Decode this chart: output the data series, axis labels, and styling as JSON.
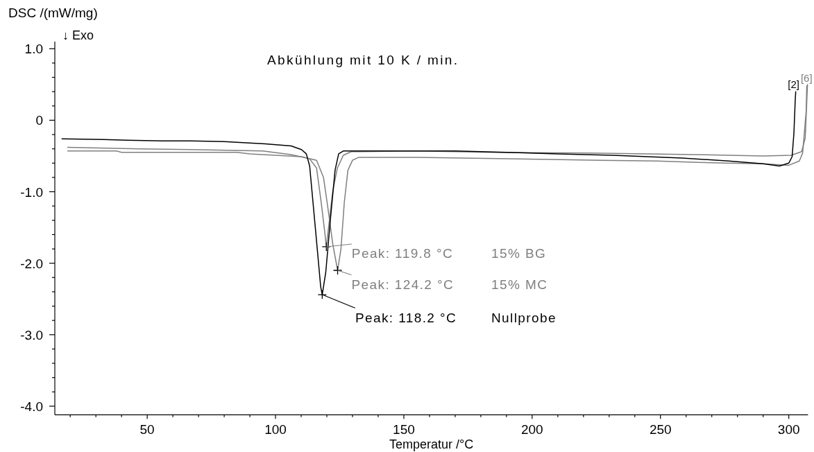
{
  "chart_data": {
    "type": "line",
    "title": "Abkühlung mit 10 K / min.",
    "xlabel": "Temperatur /°C",
    "ylabel": "DSC /(mW/mg)",
    "annotations": [
      "↓ Exo",
      {
        "text": "Peak: 119.8 °C",
        "x": 119.8,
        "y": -1.77
      },
      {
        "text": "Peak: 124.2 °C",
        "x": 124.2,
        "y": -2.1
      },
      {
        "text": "Peak: 118.2 °C",
        "x": 118.2,
        "y": -2.44
      },
      "15% BG",
      "15% MC",
      "Nullprobe",
      {
        "text": "[2]",
        "x": 302.7,
        "y": 0.4
      },
      {
        "text": "[6]",
        "x": 307.2,
        "y": 0.5
      }
    ],
    "series": [
      {
        "color": "#7f7f7f",
        "x": [
          19,
          47,
          67,
          95,
          106,
          111,
          113.3,
          116,
          117.8,
          119.2,
          119.8,
          120.5,
          122.3,
          124.1,
          126.4,
          129.5,
          133,
          155,
          185,
          222.5,
          263,
          290,
          300.9,
          305,
          306.4,
          307.3
        ],
        "values": [
          -0.38,
          -0.4,
          -0.41,
          -0.43,
          -0.48,
          -0.52,
          -0.54,
          -0.67,
          -1.15,
          -1.57,
          -1.77,
          -1.55,
          -0.99,
          -0.67,
          -0.49,
          -0.44,
          -0.44,
          -0.43,
          -0.45,
          -0.46,
          -0.48,
          -0.5,
          -0.49,
          -0.44,
          -0.25,
          0.5
        ]
      },
      {
        "color": "#7f7f7f",
        "x": [
          19,
          38,
          40,
          85,
          90,
          100,
          110,
          116,
          118.7,
          120.5,
          122.3,
          124.2,
          125.5,
          126.8,
          128.2,
          130,
          132.3,
          155,
          190.8,
          226.9,
          248.6,
          264.8,
          275.6,
          290,
          300,
          304.1,
          305.4,
          306.8,
          307
        ],
        "values": [
          -0.43,
          -0.43,
          -0.45,
          -0.45,
          -0.47,
          -0.49,
          -0.51,
          -0.56,
          -0.8,
          -1.25,
          -1.73,
          -2.1,
          -1.8,
          -1.15,
          -0.7,
          -0.56,
          -0.52,
          -0.52,
          -0.54,
          -0.56,
          -0.57,
          -0.59,
          -0.6,
          -0.61,
          -0.63,
          -0.57,
          -0.46,
          0.14,
          0.48
        ]
      },
      {
        "color": "#000000",
        "x": [
          16.8,
          33,
          42,
          56,
          67,
          80,
          96,
          106.1,
          110.1,
          112,
          113.3,
          115.5,
          117.6,
          118.2,
          119.6,
          121.4,
          123.2,
          124.6,
          126.4,
          140,
          155,
          170,
          190,
          210,
          231.4,
          258.5,
          276.6,
          290.1,
          296.4,
          300,
          301.3,
          302,
          302.5,
          302.7
        ],
        "values": [
          -0.26,
          -0.27,
          -0.28,
          -0.29,
          -0.29,
          -0.3,
          -0.33,
          -0.36,
          -0.41,
          -0.47,
          -0.64,
          -1.5,
          -2.33,
          -2.44,
          -2.12,
          -1.38,
          -0.7,
          -0.47,
          -0.43,
          -0.43,
          -0.43,
          -0.43,
          -0.45,
          -0.47,
          -0.49,
          -0.53,
          -0.57,
          -0.61,
          -0.64,
          -0.6,
          -0.51,
          -0.18,
          0.27,
          0.4
        ]
      }
    ],
    "xlim": [
      14,
      307.5
    ],
    "ylim": [
      -4.12,
      1.1
    ],
    "xticks": [
      {
        "value": 20,
        "label": null
      },
      {
        "value": 30,
        "label": null
      },
      {
        "value": 40,
        "label": null
      },
      50,
      {
        "value": 60,
        "label": null
      },
      {
        "value": 70,
        "label": null
      },
      {
        "value": 80,
        "label": null
      },
      {
        "value": 90,
        "label": null
      },
      100,
      {
        "value": 110,
        "label": null
      },
      {
        "value": 120,
        "label": null
      },
      {
        "value": 130,
        "label": null
      },
      {
        "value": 140,
        "label": null
      },
      150,
      {
        "value": 160,
        "label": null
      },
      {
        "value": 170,
        "label": null
      },
      {
        "value": 180,
        "label": null
      },
      {
        "value": 190,
        "label": null
      },
      200,
      {
        "value": 210,
        "label": null
      },
      {
        "value": 220,
        "label": null
      },
      {
        "value": 230,
        "label": null
      },
      {
        "value": 240,
        "label": null
      },
      250,
      {
        "value": 260,
        "label": null
      },
      {
        "value": 270,
        "label": null
      },
      {
        "value": 280,
        "label": null
      },
      {
        "value": 290,
        "label": null
      },
      300
    ],
    "yticks": [
      {
        "value": -4,
        "label": "-4.0"
      },
      {
        "value": -3.8,
        "label": null
      },
      {
        "value": -3.6,
        "label": null
      },
      {
        "value": -3.4,
        "label": null
      },
      {
        "value": -3.2,
        "label": null
      },
      {
        "value": -3,
        "label": "-3.0"
      },
      {
        "value": -2.8,
        "label": null
      },
      {
        "value": -2.6,
        "label": null
      },
      {
        "value": -2.4,
        "label": null
      },
      {
        "value": -2.2,
        "label": null
      },
      {
        "value": -2,
        "label": "-2.0"
      },
      {
        "value": -1.8,
        "label": null
      },
      {
        "value": -1.6,
        "label": null
      },
      {
        "value": -1.4,
        "label": null
      },
      {
        "value": -1.2,
        "label": null
      },
      {
        "value": -1,
        "label": "-1.0"
      },
      {
        "value": -0.8,
        "label": null
      },
      {
        "value": -0.6,
        "label": null
      },
      {
        "value": -0.4,
        "label": null
      },
      {
        "value": -0.2,
        "label": null
      },
      0,
      {
        "value": 0.2,
        "label": null
      },
      {
        "value": 0.4,
        "label": null
      },
      {
        "value": 0.6,
        "label": null
      },
      {
        "value": 0.8,
        "label": null
      },
      {
        "value": 1,
        "label": "1.0"
      }
    ],
    "line_style": "solid"
  }
}
